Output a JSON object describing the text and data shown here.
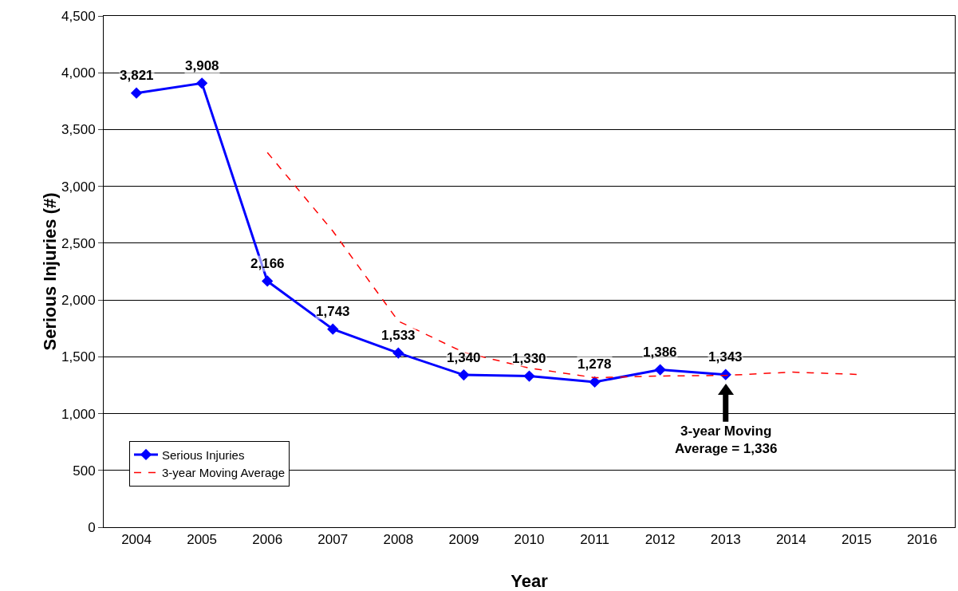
{
  "chart_data": {
    "type": "line",
    "xlabel": "Year",
    "ylabel": "Serious Injuries (#)",
    "categories": [
      "2004",
      "2005",
      "2006",
      "2007",
      "2008",
      "2009",
      "2010",
      "2011",
      "2012",
      "2013",
      "2014",
      "2015",
      "2016"
    ],
    "series": [
      {
        "name": "Serious Injuries",
        "color": "#0000ff",
        "marker": "diamond",
        "line_style": "solid",
        "values": [
          3821,
          3908,
          2166,
          1743,
          1533,
          1340,
          1330,
          1278,
          1386,
          1343,
          null,
          null,
          null
        ],
        "value_labels": [
          "3,821",
          "3,908",
          "2,166",
          "1,743",
          "1,533",
          "1,340",
          "1,330",
          "1,278",
          "1,386",
          "1,343",
          null,
          null,
          null
        ]
      },
      {
        "name": "3-year Moving Average",
        "color": "#ff0000",
        "marker": "none",
        "line_style": "dashed",
        "values": [
          null,
          null,
          3298,
          2606,
          1814,
          1539,
          1401,
          1316,
          1331,
          1336,
          1365,
          1345,
          null
        ]
      }
    ],
    "ylim": [
      0,
      4500
    ],
    "yticks": [
      {
        "value": 0,
        "label": "0"
      },
      {
        "value": 500,
        "label": "500"
      },
      {
        "value": 1000,
        "label": "1,000"
      },
      {
        "value": 1500,
        "label": "1,500"
      },
      {
        "value": 2000,
        "label": "2,000"
      },
      {
        "value": 2500,
        "label": "2,500"
      },
      {
        "value": 3000,
        "label": "3,000"
      },
      {
        "value": 3500,
        "label": "3,500"
      },
      {
        "value": 4000,
        "label": "4,000"
      },
      {
        "value": 4500,
        "label": "4,500"
      }
    ],
    "grid": "y",
    "legend": "bottom left",
    "annotations": [
      {
        "text": "3-year Moving\nAverage = 1,336",
        "x": "2013",
        "y": 1336
      }
    ]
  }
}
